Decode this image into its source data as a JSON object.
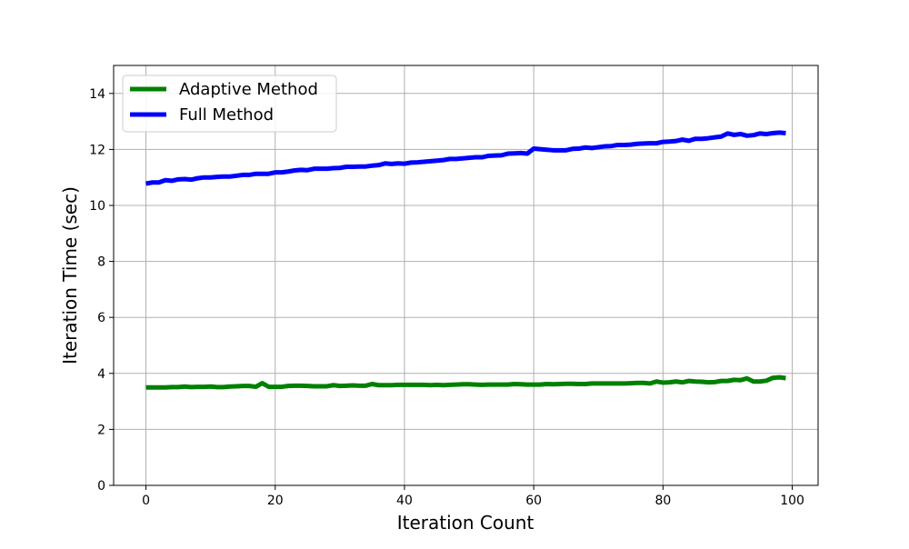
{
  "chart_data": {
    "type": "line",
    "title": "",
    "xlabel": "Iteration Count",
    "ylabel": "Iteration Time (sec)",
    "xlim": [
      -5,
      104
    ],
    "ylim": [
      0,
      15
    ],
    "xticks": [
      0,
      20,
      40,
      60,
      80,
      100
    ],
    "yticks": [
      0,
      2,
      4,
      6,
      8,
      10,
      12,
      14
    ],
    "grid": true,
    "legend_position": "top-left",
    "series": [
      {
        "name": "Adaptive Method",
        "color": "#008000",
        "x": [
          0,
          1,
          2,
          3,
          4,
          5,
          6,
          7,
          8,
          9,
          10,
          11,
          12,
          13,
          14,
          15,
          16,
          17,
          18,
          19,
          20,
          21,
          22,
          23,
          24,
          25,
          26,
          27,
          28,
          29,
          30,
          31,
          32,
          33,
          34,
          35,
          36,
          37,
          38,
          39,
          40,
          41,
          42,
          43,
          44,
          45,
          46,
          47,
          48,
          49,
          50,
          51,
          52,
          53,
          54,
          55,
          56,
          57,
          58,
          59,
          60,
          61,
          62,
          63,
          64,
          65,
          66,
          67,
          68,
          69,
          70,
          71,
          72,
          73,
          74,
          75,
          76,
          77,
          78,
          79,
          80,
          81,
          82,
          83,
          84,
          85,
          86,
          87,
          88,
          89,
          90,
          91,
          92,
          93,
          94,
          95,
          96,
          97,
          98,
          99
        ],
        "values": [
          3.5,
          3.5,
          3.5,
          3.5,
          3.51,
          3.51,
          3.53,
          3.51,
          3.52,
          3.52,
          3.53,
          3.51,
          3.51,
          3.53,
          3.54,
          3.55,
          3.55,
          3.52,
          3.65,
          3.52,
          3.52,
          3.52,
          3.55,
          3.56,
          3.56,
          3.55,
          3.54,
          3.54,
          3.54,
          3.58,
          3.55,
          3.56,
          3.57,
          3.56,
          3.56,
          3.62,
          3.58,
          3.58,
          3.58,
          3.59,
          3.59,
          3.59,
          3.59,
          3.59,
          3.58,
          3.59,
          3.58,
          3.59,
          3.6,
          3.61,
          3.61,
          3.6,
          3.59,
          3.6,
          3.6,
          3.6,
          3.6,
          3.62,
          3.61,
          3.6,
          3.6,
          3.6,
          3.62,
          3.61,
          3.62,
          3.63,
          3.63,
          3.62,
          3.62,
          3.64,
          3.64,
          3.64,
          3.64,
          3.64,
          3.64,
          3.65,
          3.66,
          3.66,
          3.64,
          3.71,
          3.67,
          3.68,
          3.71,
          3.68,
          3.73,
          3.71,
          3.7,
          3.68,
          3.69,
          3.73,
          3.73,
          3.77,
          3.76,
          3.82,
          3.71,
          3.71,
          3.74,
          3.84,
          3.86,
          3.83
        ]
      },
      {
        "name": "Full Method",
        "color": "#0000ff",
        "x": [
          0,
          1,
          2,
          3,
          4,
          5,
          6,
          7,
          8,
          9,
          10,
          11,
          12,
          13,
          14,
          15,
          16,
          17,
          18,
          19,
          20,
          21,
          22,
          23,
          24,
          25,
          26,
          27,
          28,
          29,
          30,
          31,
          32,
          33,
          34,
          35,
          36,
          37,
          38,
          39,
          40,
          41,
          42,
          43,
          44,
          45,
          46,
          47,
          48,
          49,
          50,
          51,
          52,
          53,
          54,
          55,
          56,
          57,
          58,
          59,
          60,
          61,
          62,
          63,
          64,
          65,
          66,
          67,
          68,
          69,
          70,
          71,
          72,
          73,
          74,
          75,
          76,
          77,
          78,
          79,
          80,
          81,
          82,
          83,
          84,
          85,
          86,
          87,
          88,
          89,
          90,
          91,
          92,
          93,
          94,
          95,
          96,
          97,
          98,
          99
        ],
        "values": [
          10.78,
          10.82,
          10.82,
          10.9,
          10.88,
          10.93,
          10.94,
          10.92,
          10.97,
          11.0,
          11.0,
          11.02,
          11.03,
          11.03,
          11.06,
          11.09,
          11.09,
          11.13,
          11.13,
          11.13,
          11.18,
          11.18,
          11.21,
          11.25,
          11.27,
          11.26,
          11.31,
          11.31,
          11.31,
          11.33,
          11.34,
          11.38,
          11.38,
          11.39,
          11.39,
          11.42,
          11.44,
          11.5,
          11.48,
          11.5,
          11.49,
          11.53,
          11.54,
          11.56,
          11.58,
          11.6,
          11.62,
          11.66,
          11.66,
          11.68,
          11.7,
          11.72,
          11.72,
          11.77,
          11.78,
          11.79,
          11.85,
          11.86,
          11.87,
          11.85,
          12.03,
          12.01,
          11.99,
          11.97,
          11.97,
          11.97,
          12.02,
          12.03,
          12.07,
          12.05,
          12.08,
          12.11,
          12.12,
          12.16,
          12.16,
          12.17,
          12.2,
          12.21,
          12.22,
          12.22,
          12.27,
          12.28,
          12.3,
          12.35,
          12.31,
          12.38,
          12.38,
          12.4,
          12.43,
          12.46,
          12.57,
          12.52,
          12.55,
          12.49,
          12.51,
          12.57,
          12.55,
          12.58,
          12.6,
          12.58
        ]
      }
    ]
  }
}
